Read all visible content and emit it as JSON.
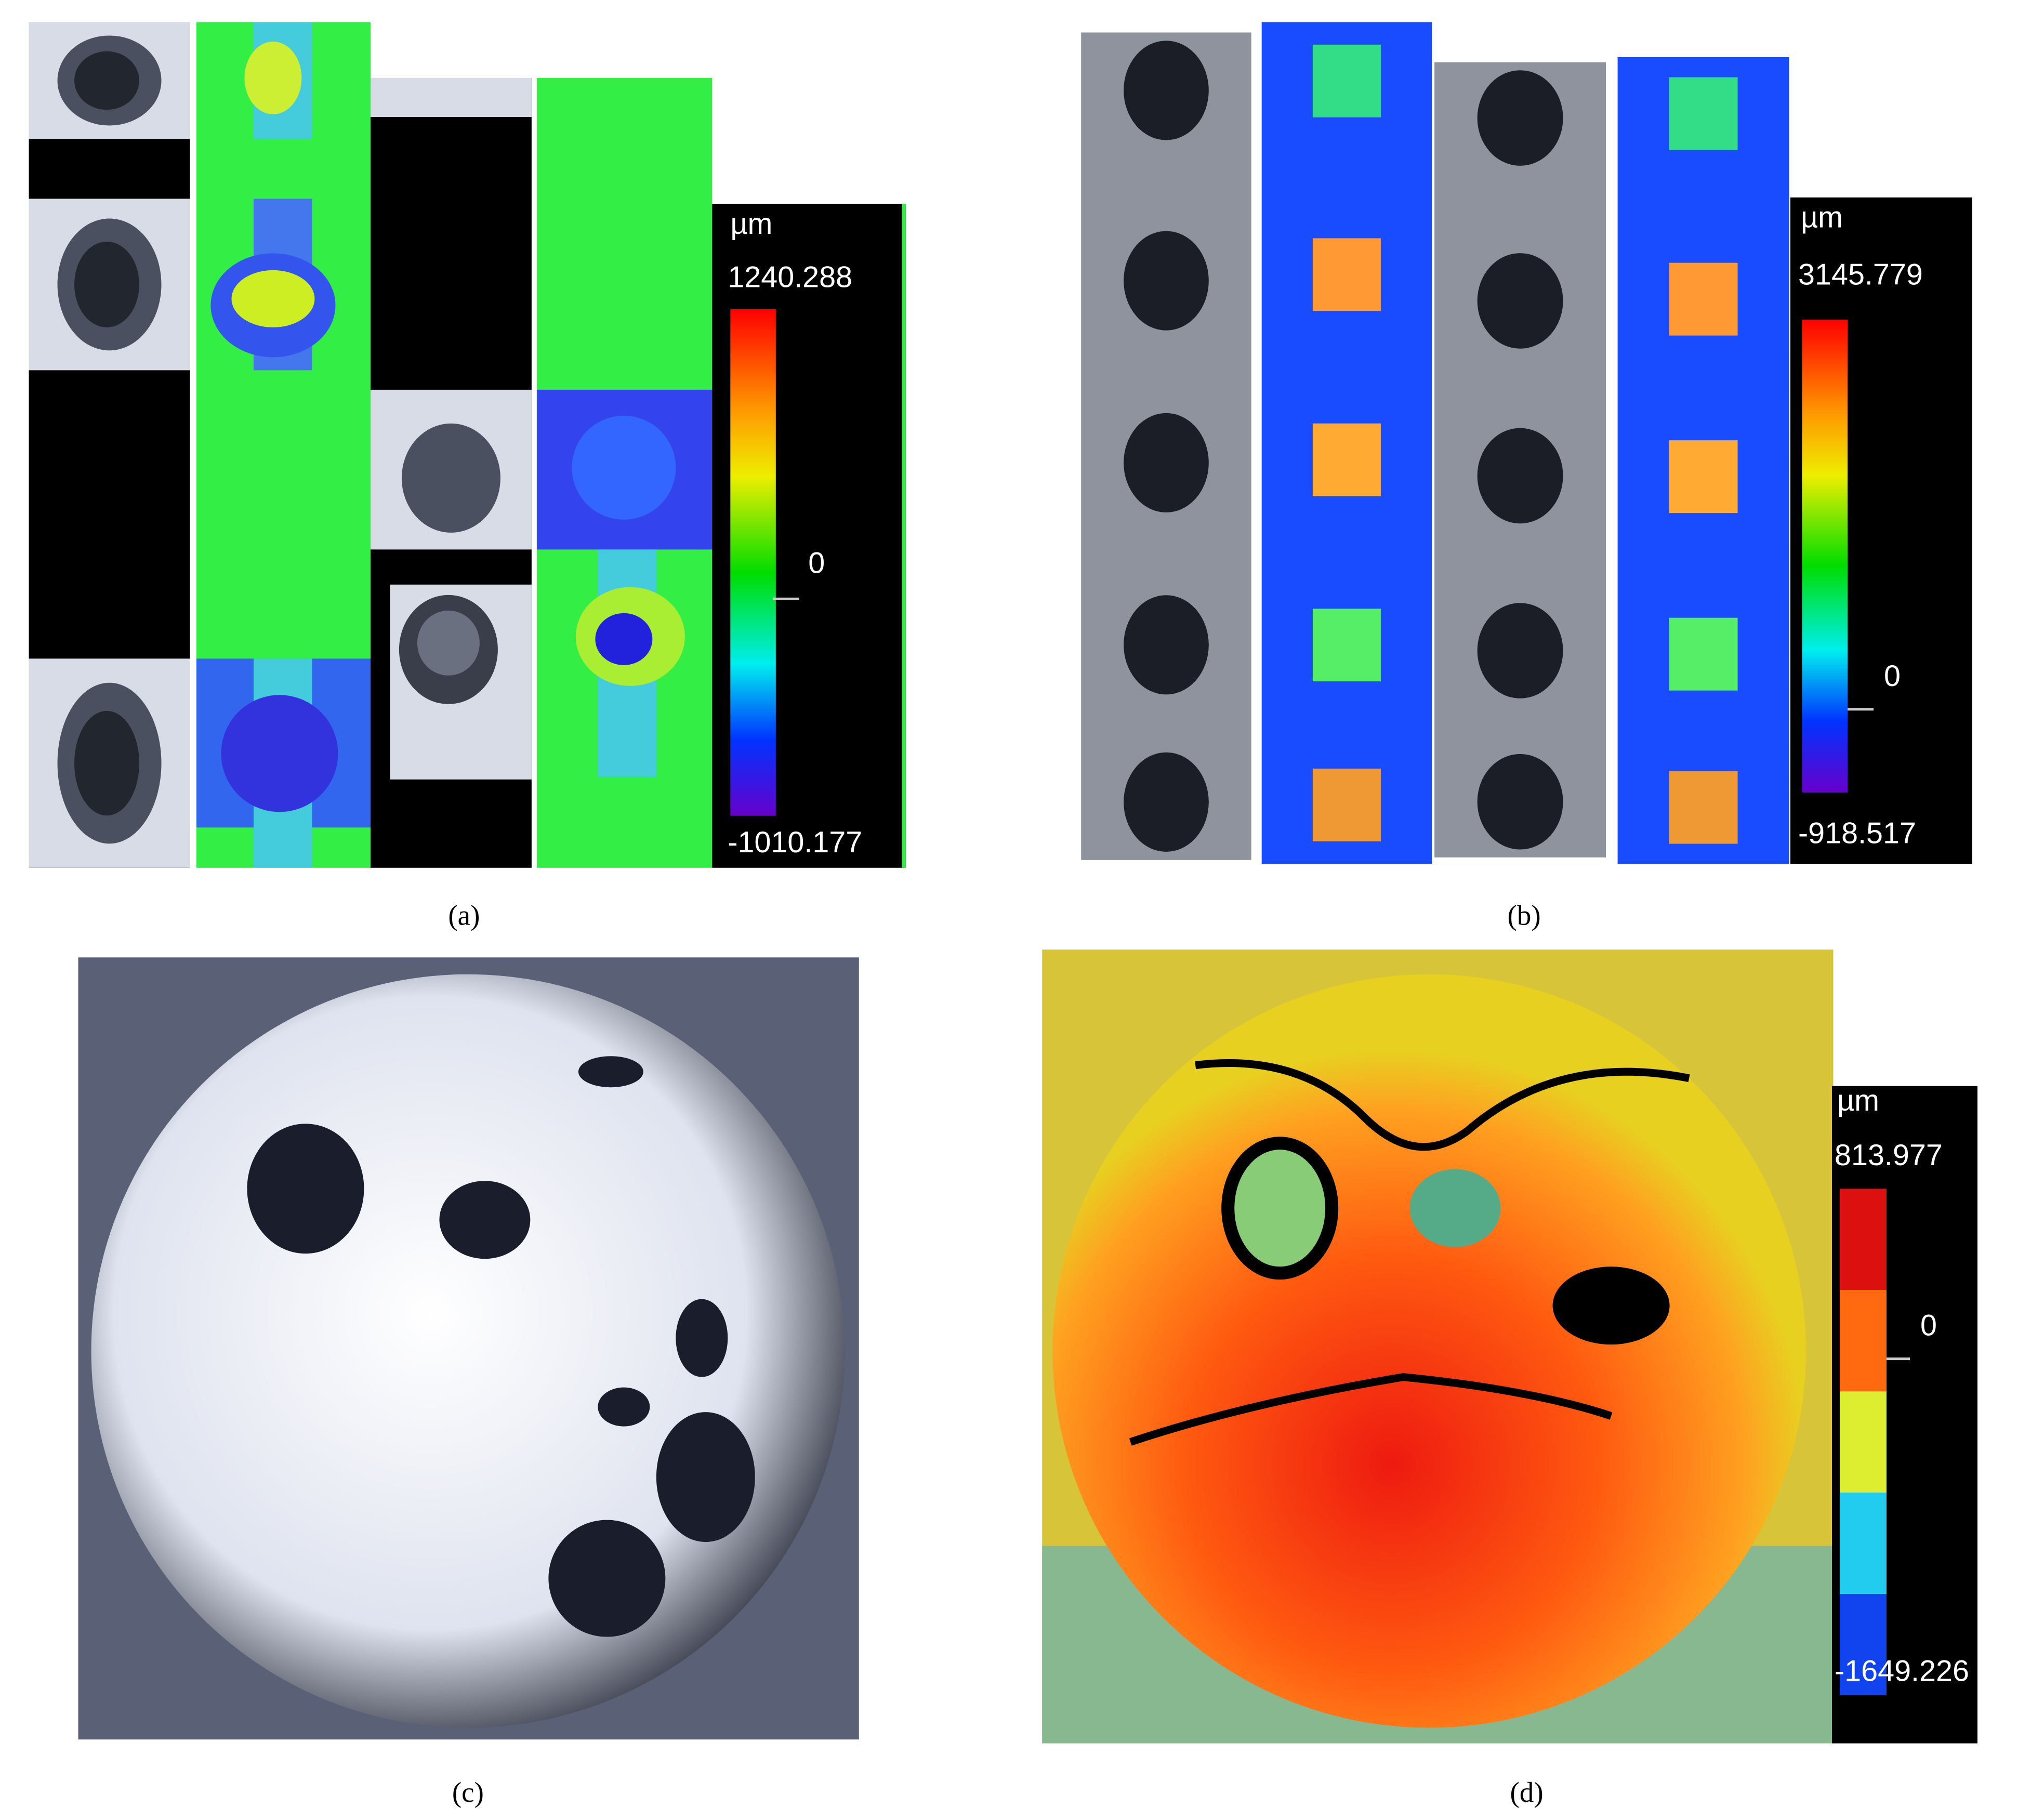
{
  "panels": [
    {
      "caption": "(a)",
      "colorbar": {
        "unit": "µm",
        "max": "1240.288",
        "zero": "0",
        "min": "-1010.177"
      }
    },
    {
      "caption": "(b)",
      "colorbar": {
        "unit": "µm",
        "max": "3145.779",
        "zero": "0",
        "min": "-918.517"
      }
    },
    {
      "caption": "(c)"
    },
    {
      "caption": "(d)",
      "colorbar": {
        "unit": "µm",
        "max": "813.977",
        "zero": "0",
        "min": "-1649.226"
      }
    }
  ]
}
